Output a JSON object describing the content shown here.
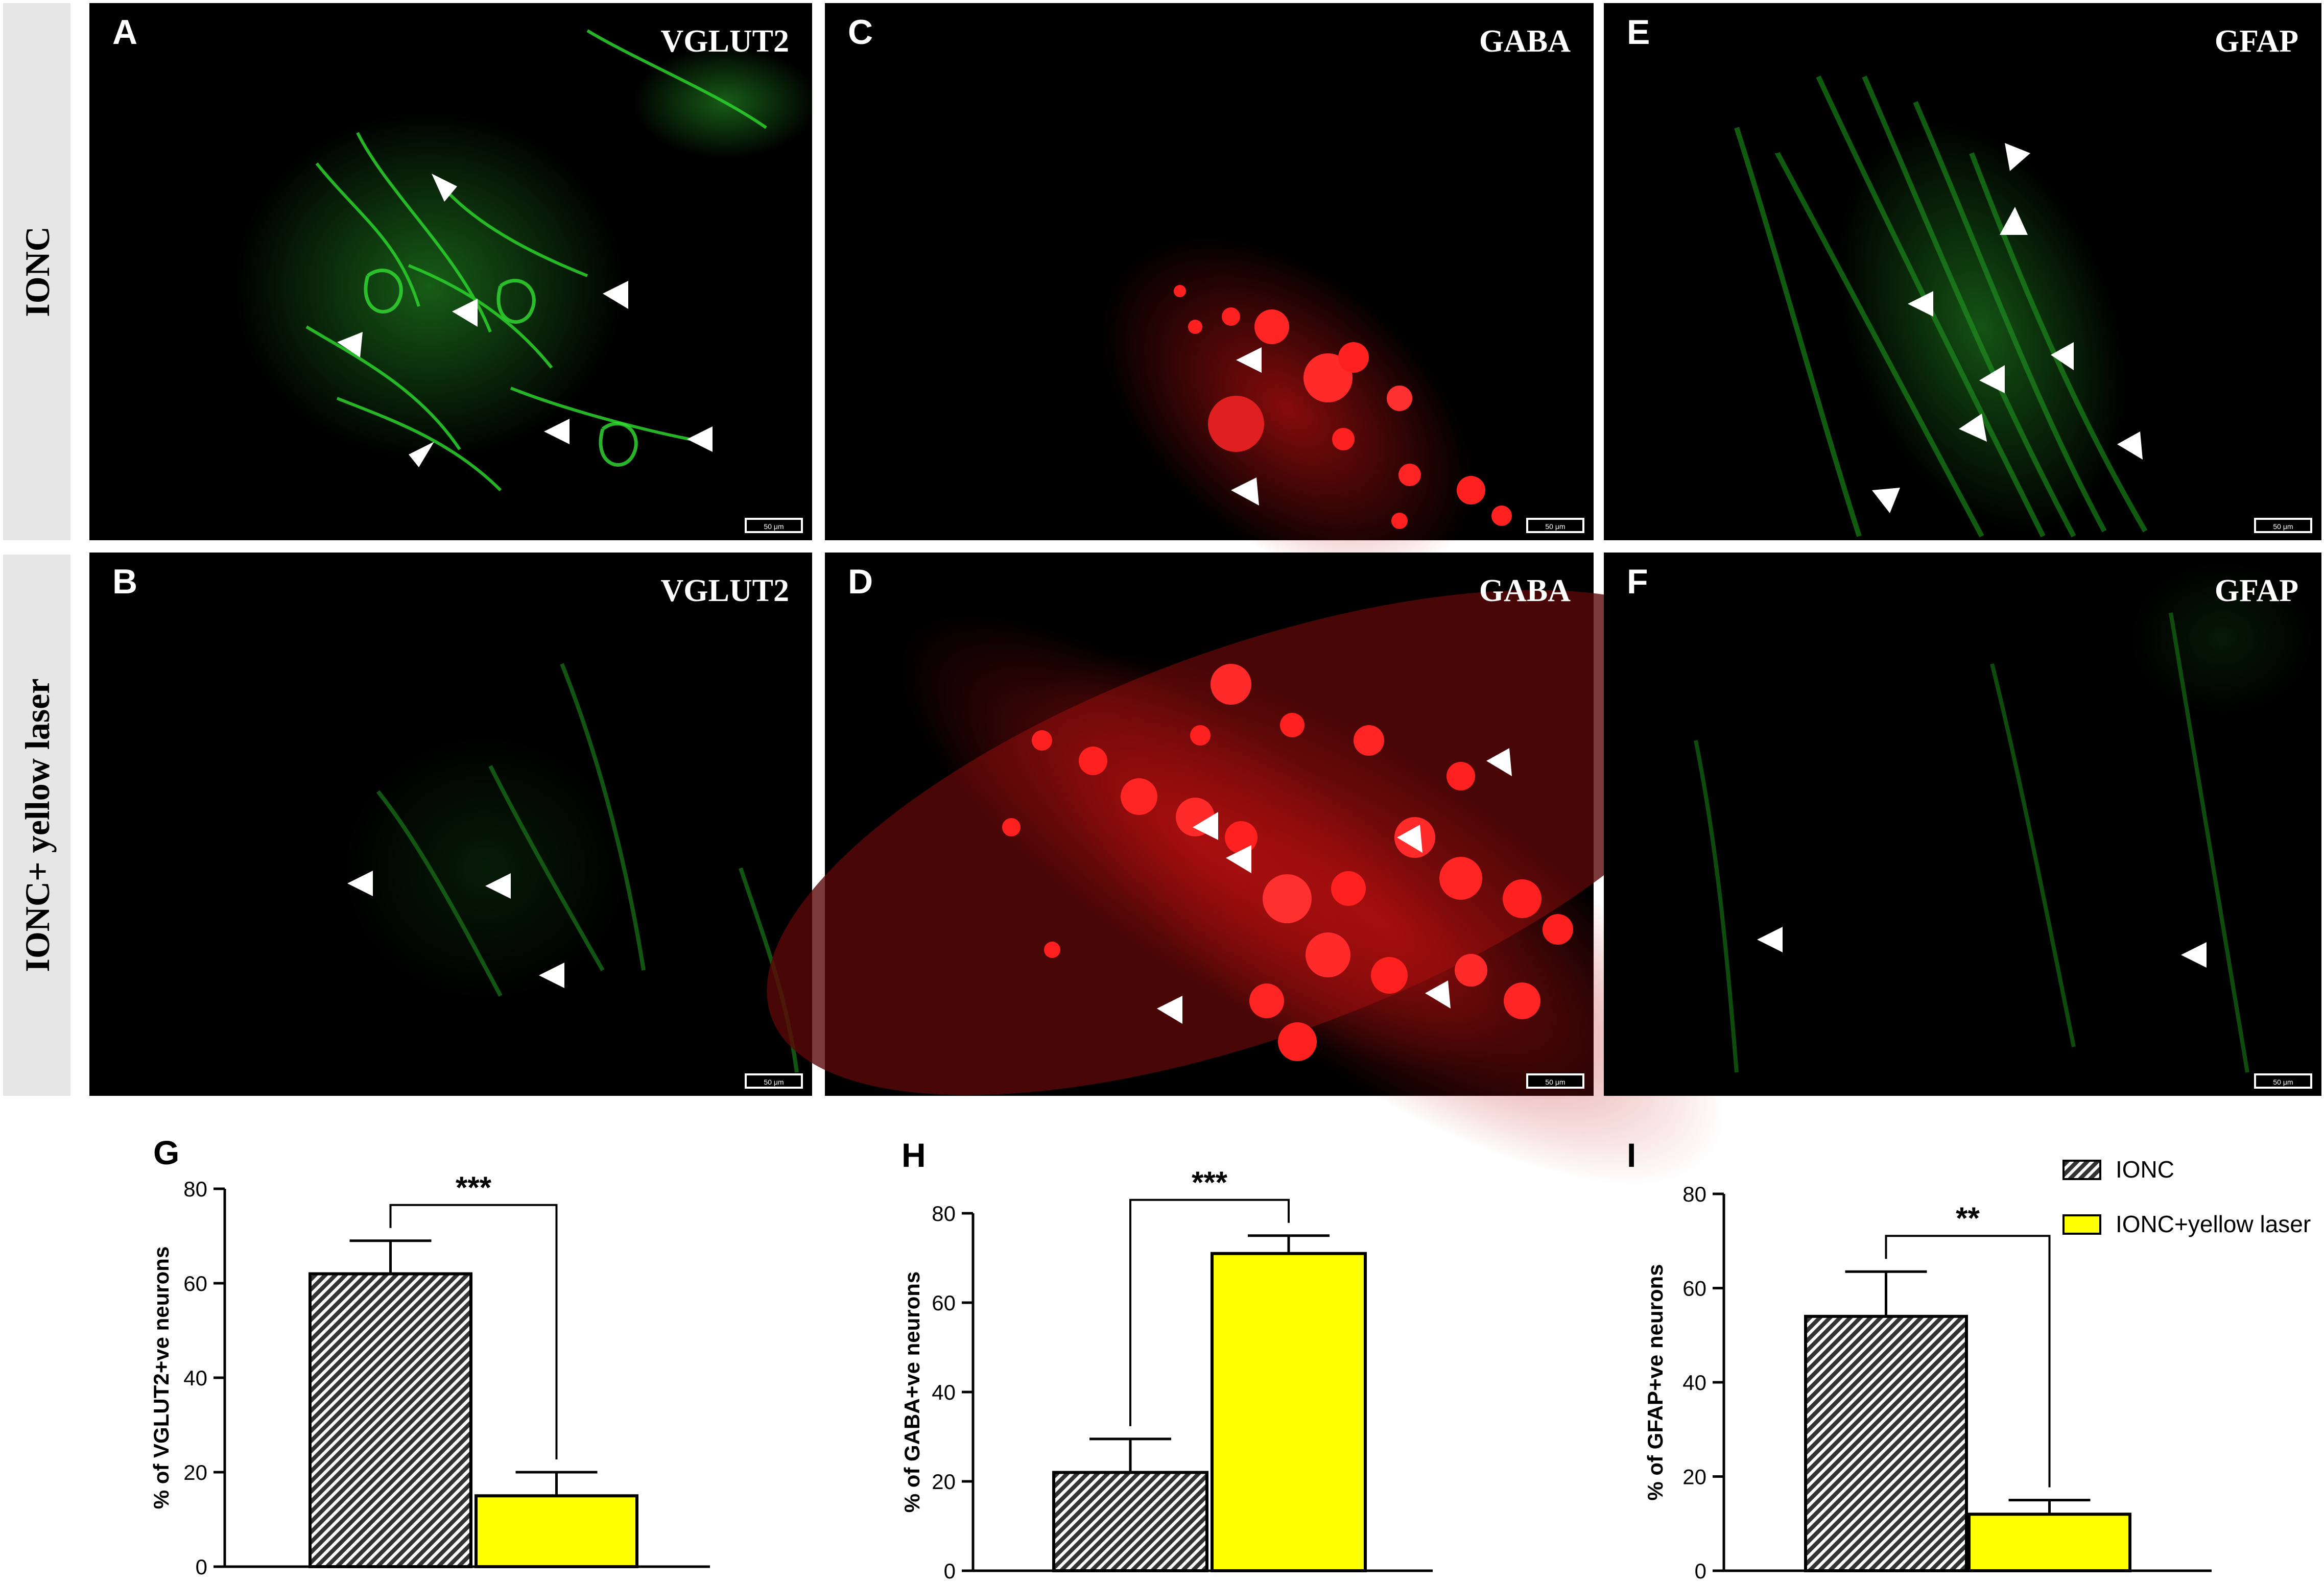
{
  "row_labels": [
    "IONC",
    "IONC+ yellow laser"
  ],
  "panels": [
    {
      "letter": "A",
      "marker": "VGLUT2",
      "scale_bar": "50 μm"
    },
    {
      "letter": "C",
      "marker": "GABA",
      "scale_bar": "50 μm"
    },
    {
      "letter": "E",
      "marker": "GFAP",
      "scale_bar": "50 μm"
    },
    {
      "letter": "B",
      "marker": "VGLUT2",
      "scale_bar": "50 μm"
    },
    {
      "letter": "D",
      "marker": "GABA",
      "scale_bar": "50 μm"
    },
    {
      "letter": "F",
      "marker": "GFAP",
      "scale_bar": "50 μm"
    }
  ],
  "legend": {
    "items": [
      {
        "label": "IONC",
        "pattern": "hatched"
      },
      {
        "label": "IONC+yellow laser",
        "color": "#ffff00"
      }
    ]
  },
  "colors": {
    "green_stain": "#28c828",
    "red_stain": "#ff2020",
    "laser_bar": "#ffff00",
    "hatch_bar": "#333333",
    "label_panel": "#e6e6e6"
  },
  "chart_data": [
    {
      "type": "bar",
      "panel_letter": "G",
      "categories": [
        "IONC",
        "IONC+yellow laser"
      ],
      "values": [
        62,
        15
      ],
      "errors": [
        7,
        5
      ],
      "ylabel": "% of VGLUT2+ve neurons",
      "ylim": [
        0,
        80
      ],
      "yticks": [
        0,
        20,
        40,
        60,
        80
      ],
      "significance": "***"
    },
    {
      "type": "bar",
      "panel_letter": "H",
      "categories": [
        "IONC",
        "IONC+yellow laser"
      ],
      "values": [
        22,
        71
      ],
      "errors": [
        7.5,
        4
      ],
      "ylabel": "% of GABA+ve neurons",
      "ylim": [
        0,
        80
      ],
      "yticks": [
        0,
        20,
        40,
        60,
        80
      ],
      "significance": "***"
    },
    {
      "type": "bar",
      "panel_letter": "I",
      "categories": [
        "IONC",
        "IONC+yellow laser"
      ],
      "values": [
        54,
        12
      ],
      "errors": [
        9.5,
        3
      ],
      "ylabel": "% of GFAP+ve neurons",
      "ylim": [
        0,
        80
      ],
      "yticks": [
        0,
        20,
        40,
        60,
        80
      ],
      "significance": "**"
    }
  ]
}
